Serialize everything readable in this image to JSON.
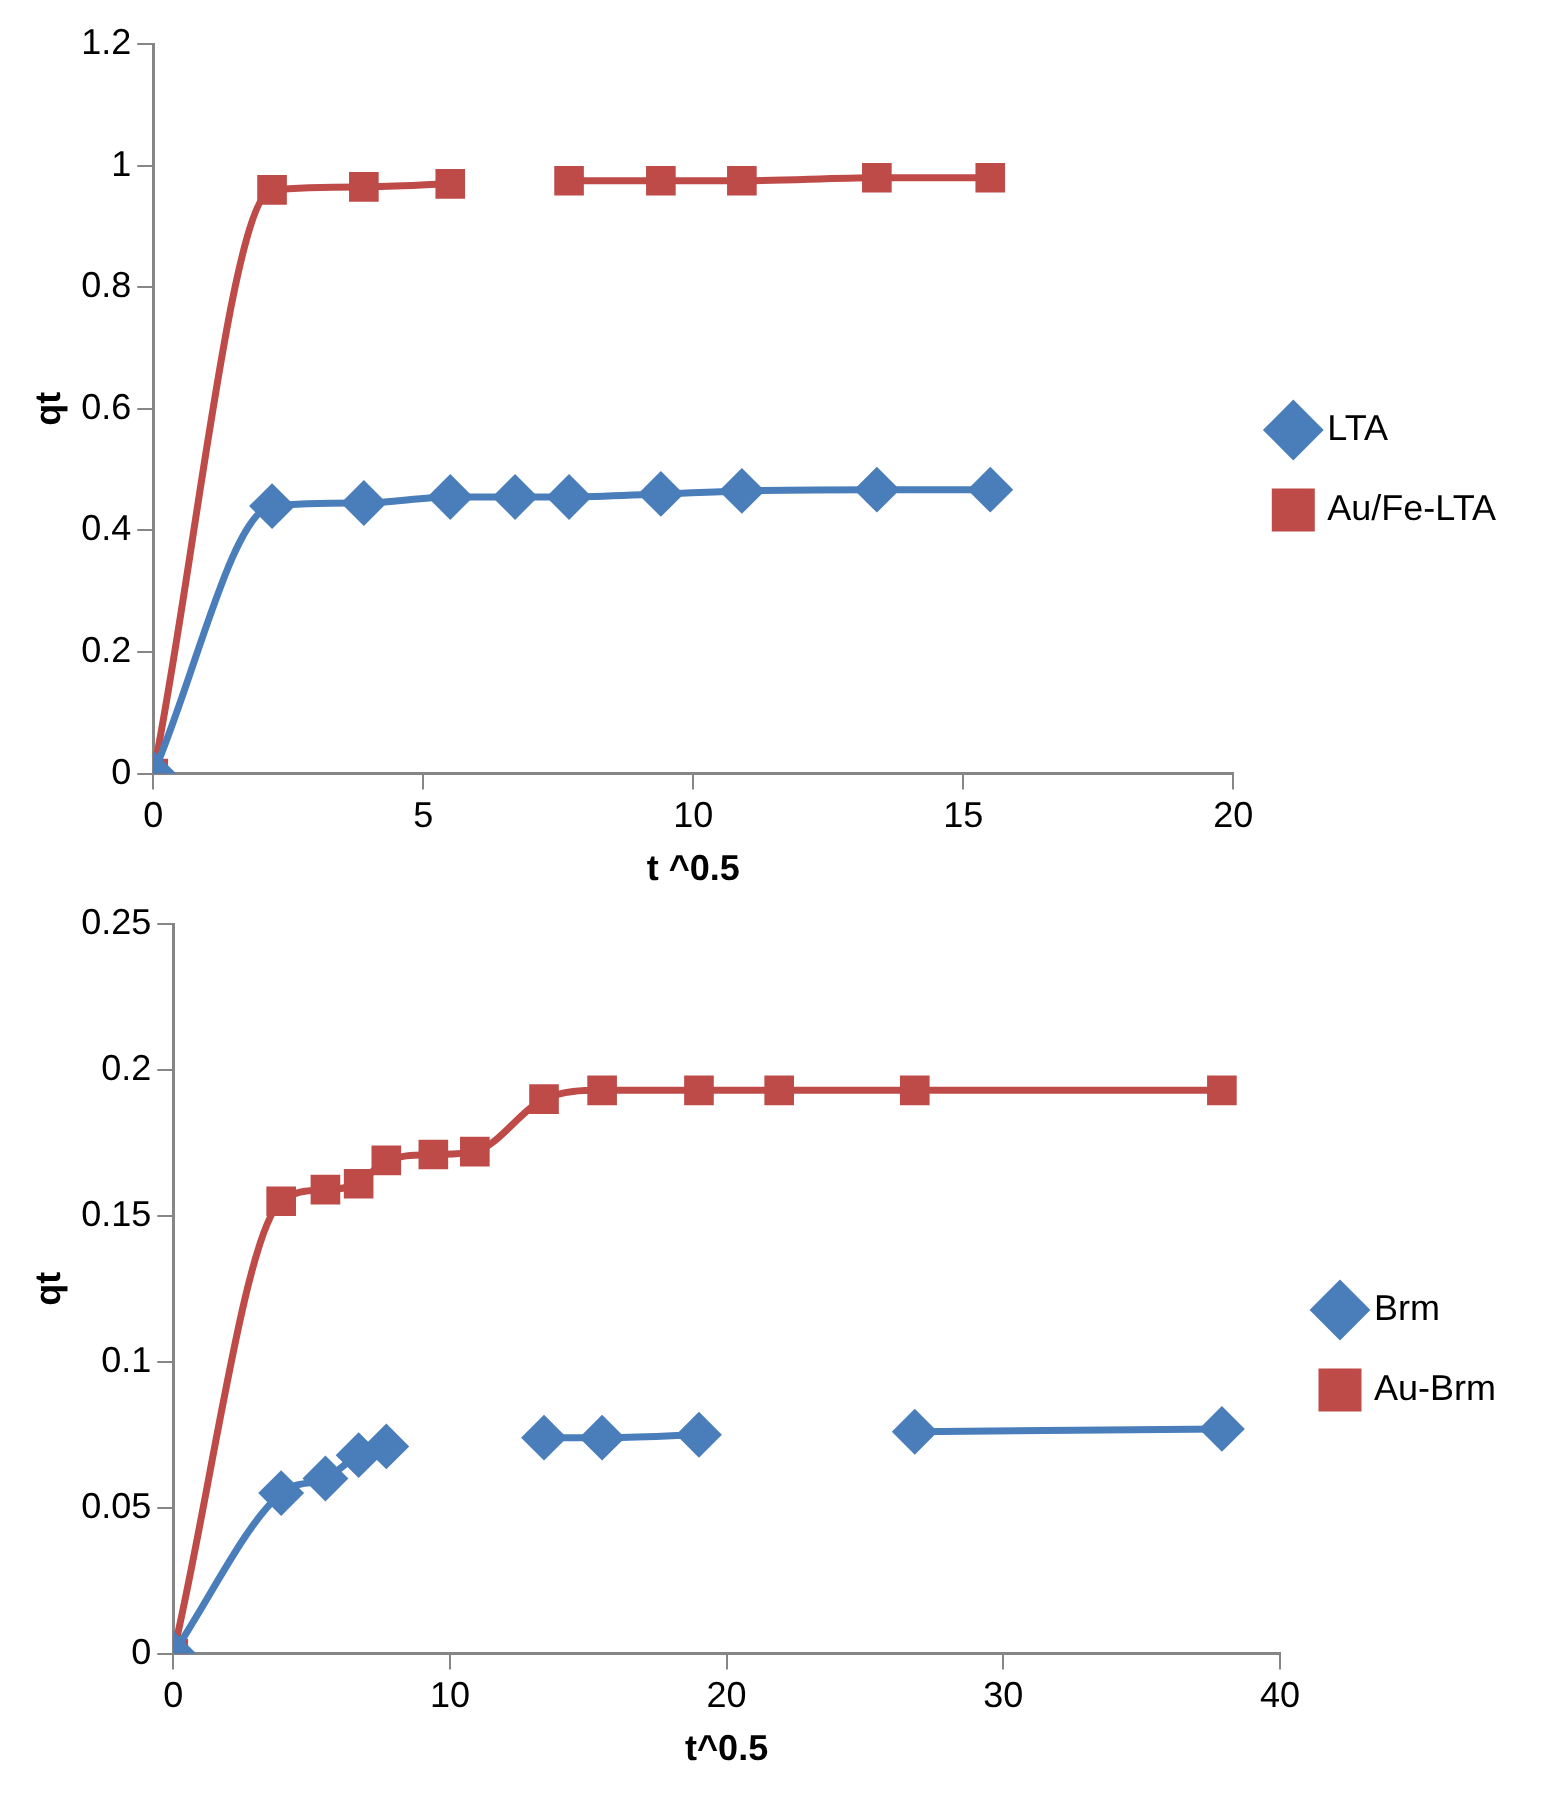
{
  "chart_data": [
    {
      "type": "line",
      "xlabel": "t ^0.5",
      "ylabel": "qt",
      "xlim": [
        0,
        20
      ],
      "xticks": [
        0,
        5,
        10,
        15,
        20
      ],
      "ylim": [
        0,
        1.2
      ],
      "yticks": [
        0,
        0.2,
        0.4,
        0.6,
        0.8,
        1,
        1.2
      ],
      "grid": false,
      "legend": "right",
      "series": [
        {
          "name": "LTA",
          "color": "#4a7ebb",
          "marker": "diamond",
          "x": [
            0,
            2.2,
            3.9,
            5.5,
            6.7,
            7.7,
            9.4,
            10.9,
            13.4,
            15.5
          ],
          "values": [
            0,
            0.44,
            0.445,
            0.455,
            0.455,
            0.455,
            0.46,
            0.465,
            0.467,
            0.467
          ]
        },
        {
          "name": "Au/Fe-LTA",
          "color": "#be4b48",
          "marker": "square",
          "x": [
            0,
            2.2,
            3.9,
            5.5,
            6.7,
            7.7,
            9.4,
            10.9,
            13.4,
            15.5
          ],
          "values": [
            0,
            0.96,
            0.965,
            0.97,
            null,
            0.975,
            0.975,
            0.975,
            0.98,
            0.98
          ]
        }
      ]
    },
    {
      "type": "line",
      "xlabel": "t^0.5",
      "ylabel": "qt",
      "xlim": [
        0,
        40
      ],
      "xticks": [
        0,
        10,
        20,
        30,
        40
      ],
      "ylim": [
        0,
        0.25
      ],
      "yticks": [
        0,
        0.05,
        0.1,
        0.15,
        0.2,
        0.25
      ],
      "grid": false,
      "legend": "right",
      "series": [
        {
          "name": "Brm",
          "color": "#4a7ebb",
          "marker": "diamond",
          "x": [
            0,
            3.9,
            5.5,
            6.7,
            7.7,
            9.4,
            13.4,
            15.5,
            19,
            21.9,
            26.8,
            37.9
          ],
          "values": [
            0,
            0.055,
            0.06,
            0.068,
            0.071,
            null,
            0.074,
            0.074,
            0.075,
            null,
            0.076,
            0.077
          ]
        },
        {
          "name": "Au-Brm",
          "color": "#be4b48",
          "marker": "square",
          "x": [
            0,
            3.9,
            5.5,
            6.7,
            7.7,
            9.4,
            10.9,
            13.4,
            15.5,
            19,
            21.9,
            26.8,
            37.9
          ],
          "values": [
            0,
            0.155,
            0.159,
            0.161,
            0.169,
            0.171,
            0.172,
            0.19,
            0.193,
            0.193,
            0.193,
            0.193,
            0.193
          ]
        }
      ]
    }
  ]
}
